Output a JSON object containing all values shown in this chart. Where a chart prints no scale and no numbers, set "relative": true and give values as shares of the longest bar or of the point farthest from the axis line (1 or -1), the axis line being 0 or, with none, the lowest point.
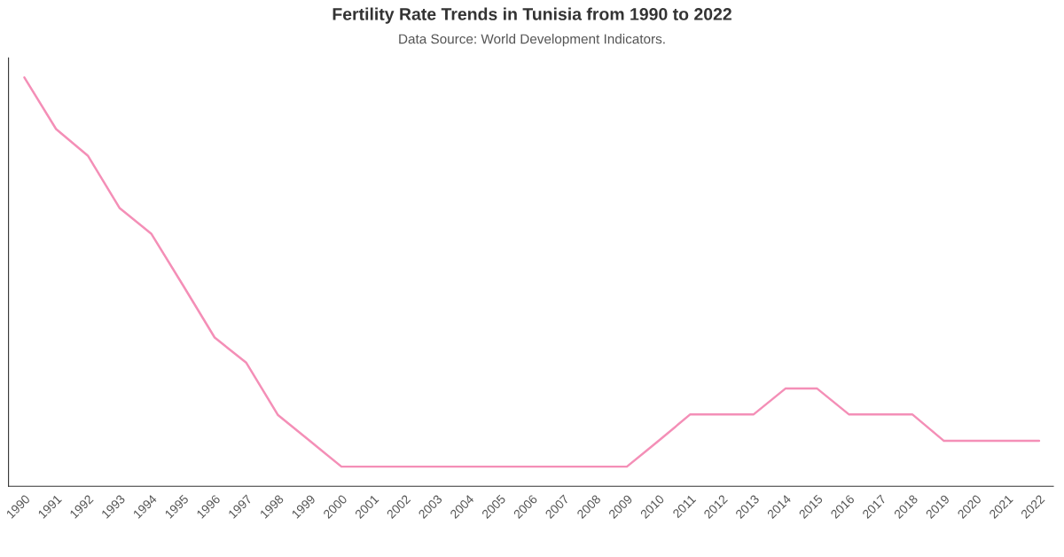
{
  "chart_data": {
    "type": "line",
    "title": "Fertility Rate Trends in Tunisia from 1990 to 2022",
    "subtitle": "Data Source: World Development Indicators.",
    "relative": true,
    "categories": [
      "1990",
      "1991",
      "1992",
      "1993",
      "1994",
      "1995",
      "1996",
      "1997",
      "1998",
      "1999",
      "2000",
      "2001",
      "2002",
      "2003",
      "2004",
      "2005",
      "2006",
      "2007",
      "2008",
      "2009",
      "2010",
      "2011",
      "2012",
      "2013",
      "2014",
      "2015",
      "2016",
      "2017",
      "2018",
      "2019",
      "2020",
      "2021",
      "2022"
    ],
    "series": [
      {
        "color": "#f48fb7",
        "values": [
          1.0,
          0.874,
          0.809,
          0.681,
          0.618,
          0.492,
          0.364,
          0.302,
          0.174,
          0.111,
          0.048,
          0.048,
          0.048,
          0.048,
          0.048,
          0.048,
          0.048,
          0.048,
          0.048,
          0.048,
          0.111,
          0.176,
          0.176,
          0.176,
          0.239,
          0.239,
          0.176,
          0.176,
          0.176,
          0.111,
          0.111,
          0.111,
          0.111
        ]
      }
    ],
    "grid": false,
    "marker": "none",
    "line_style": "solid"
  }
}
